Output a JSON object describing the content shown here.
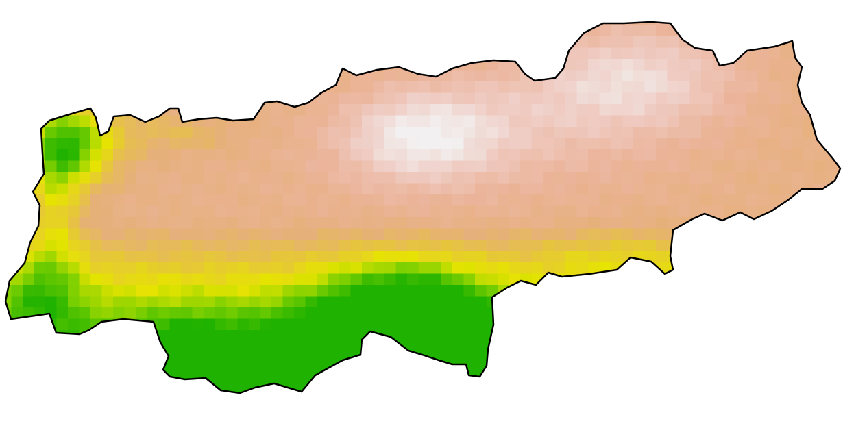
{
  "map": {
    "type": "raster-heatmap",
    "palette": {
      "green_dark": "#1fb200",
      "green": "#7fd000",
      "yellow": "#e6e400",
      "yellow_orange": "#e6c43e",
      "tan": "#e6b07a",
      "salmon": "#ebb49a",
      "pink": "#efcbc2",
      "near_white": "#f2f0f0"
    },
    "boundary_color": "#000000",
    "background": "#ffffff",
    "legend": null
  }
}
